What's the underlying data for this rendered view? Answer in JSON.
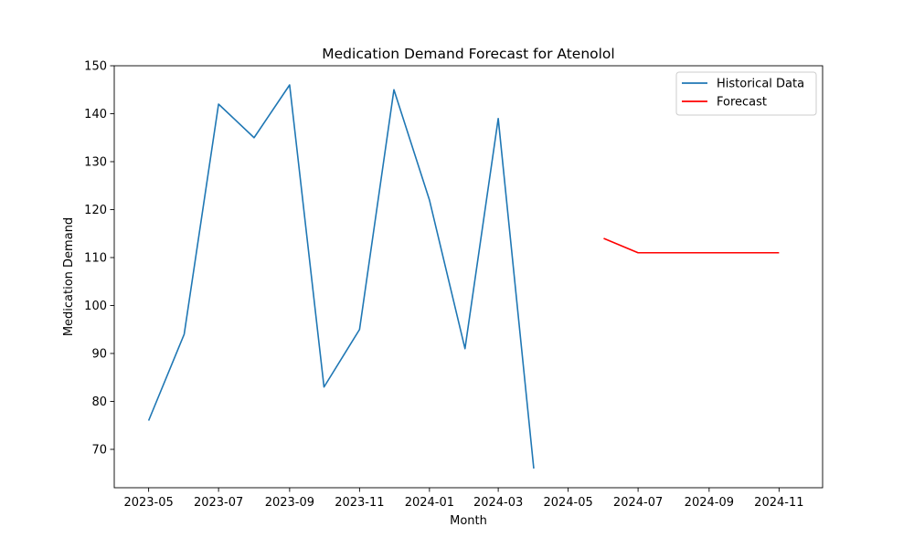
{
  "chart_data": {
    "type": "line",
    "title": "Medication Demand Forecast for Atenolol",
    "xlabel": "Month",
    "ylabel": "Medication Demand",
    "x_ticks": [
      "2023-05",
      "2023-07",
      "2023-09",
      "2023-11",
      "2024-01",
      "2024-03",
      "2024-05",
      "2024-07",
      "2024-09",
      "2024-11"
    ],
    "y_ticks": [
      70,
      80,
      90,
      100,
      110,
      120,
      130,
      140,
      150
    ],
    "xlim": [
      "2023-04-01",
      "2024-12-09"
    ],
    "ylim": [
      62,
      150
    ],
    "grid": false,
    "legend_position": "top-right",
    "series": [
      {
        "name": "Historical Data",
        "color": "#1f77b4",
        "x": [
          "2023-05",
          "2023-06",
          "2023-07",
          "2023-08",
          "2023-09",
          "2023-10",
          "2023-11",
          "2023-12",
          "2024-01",
          "2024-02",
          "2024-03",
          "2024-04"
        ],
        "y": [
          76,
          94,
          142,
          135,
          146,
          83,
          95,
          145,
          122,
          91,
          139,
          66
        ]
      },
      {
        "name": "Forecast",
        "color": "#ff0000",
        "x": [
          "2024-06",
          "2024-07",
          "2024-08",
          "2024-09",
          "2024-10",
          "2024-11"
        ],
        "y": [
          114,
          111,
          111,
          111,
          111,
          111
        ]
      }
    ]
  }
}
